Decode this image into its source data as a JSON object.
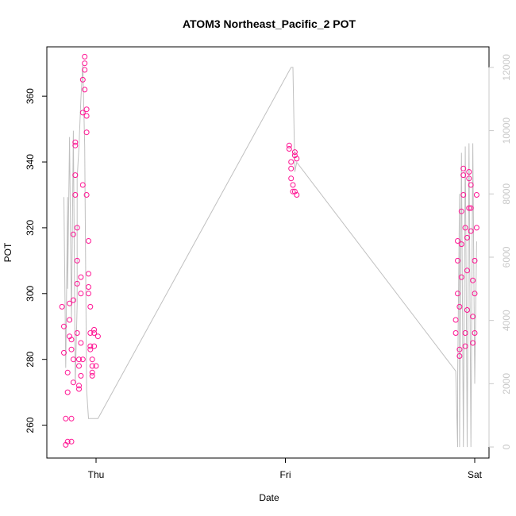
{
  "chart_data": {
    "type": "scatter",
    "title": "ATOM3 Northeast_Pacific_2 POT",
    "xlabel": "Date",
    "ylabel": "POT",
    "x_ticks": [
      "Thu",
      "Fri",
      "Sat"
    ],
    "ylim": [
      250,
      375
    ],
    "y_ticks": [
      260,
      280,
      300,
      320,
      340,
      360
    ],
    "y2lim": [
      -350,
      12650
    ],
    "y2_ticks": [
      0,
      2000,
      4000,
      6000,
      8000,
      10000,
      12000
    ],
    "grid": false,
    "colors": {
      "points": "#ff1493",
      "line": "#c0c0c0",
      "right_axis": "#c8c8c8"
    },
    "series": [
      {
        "axis": "left",
        "x": [
          -0.18,
          -0.17,
          -0.17,
          -0.16,
          -0.16,
          -0.15,
          -0.15,
          -0.15,
          -0.14,
          -0.14,
          -0.14,
          -0.13,
          -0.13,
          -0.13,
          -0.13,
          -0.12,
          -0.12,
          -0.12,
          -0.12,
          -0.11,
          -0.11,
          -0.11,
          -0.11,
          -0.1,
          -0.1,
          -0.1,
          -0.1,
          -0.09,
          -0.09,
          -0.09,
          -0.09,
          -0.08,
          -0.08,
          -0.08,
          -0.08,
          -0.07,
          -0.07,
          -0.07,
          -0.07,
          -0.06,
          -0.06,
          -0.06,
          -0.06,
          -0.05,
          -0.05,
          -0.05,
          -0.05,
          -0.04,
          -0.04,
          -0.04,
          -0.04,
          -0.03,
          -0.03,
          -0.03,
          -0.03,
          -0.02,
          -0.02,
          -0.02,
          -0.02,
          -0.01,
          -0.01,
          -0.01,
          0.0,
          0.01,
          1.02,
          1.02,
          1.03,
          1.03,
          1.03,
          1.04,
          1.04,
          1.05,
          1.05,
          1.05,
          1.06,
          1.06,
          1.9,
          1.9,
          1.91,
          1.91,
          1.91,
          1.92,
          1.92,
          1.92,
          1.93,
          1.93,
          1.93,
          1.94,
          1.94,
          1.94,
          1.95,
          1.95,
          1.95,
          1.96,
          1.96,
          1.96,
          1.97,
          1.97,
          1.97,
          1.98,
          1.98,
          1.98,
          1.99,
          1.99,
          1.99,
          2.0,
          2.0,
          2.0,
          2.01,
          2.01
        ],
        "y": [
          296,
          290,
          282,
          262,
          254,
          255,
          270,
          276,
          292,
          297,
          287,
          262,
          255,
          286,
          283,
          280,
          273,
          298,
          318,
          336,
          330,
          345,
          346,
          310,
          320,
          303,
          288,
          278,
          280,
          271,
          272,
          275,
          300,
          305,
          285,
          280,
          333,
          355,
          365,
          362,
          370,
          372,
          368,
          356,
          354,
          349,
          330,
          316,
          306,
          302,
          300,
          296,
          288,
          284,
          283,
          280,
          278,
          276,
          275,
          289,
          288,
          284,
          278,
          287,
          345,
          344,
          340,
          338,
          335,
          333,
          331,
          331,
          342,
          343,
          341,
          330,
          288,
          292,
          300,
          310,
          316,
          281,
          283,
          296,
          305,
          315,
          325,
          336,
          338,
          330,
          320,
          288,
          284,
          295,
          307,
          317,
          326,
          335,
          337,
          333,
          326,
          319,
          304,
          293,
          285,
          288,
          300,
          310,
          320,
          330
        ]
      },
      {
        "axis": "right",
        "x": [
          -0.17,
          -0.16,
          -0.15,
          -0.15,
          -0.14,
          -0.13,
          -0.12,
          -0.11,
          -0.1,
          -0.1,
          -0.09,
          -0.08,
          -0.07,
          -0.06,
          -0.05,
          -0.04,
          -0.03,
          -0.02,
          -0.01,
          0.0,
          0.01,
          1.03,
          1.04,
          1.05,
          1.06,
          1.9,
          1.91,
          1.91,
          1.92,
          1.92,
          1.93,
          1.94,
          1.95,
          1.96,
          1.97,
          1.98,
          1.99,
          2.0,
          2.01
        ],
        "y": [
          7900,
          2500,
          7900,
          5000,
          9800,
          4000,
          10000,
          2000,
          4500,
          8500,
          9500,
          11000,
          12100,
          9500,
          1800,
          900,
          900,
          900,
          900,
          900,
          900,
          12000,
          12000,
          8700,
          9000,
          2400,
          0,
          2200,
          8000,
          0,
          9300,
          0,
          9500,
          0,
          9600,
          0,
          9600,
          2000,
          6500
        ]
      }
    ]
  }
}
